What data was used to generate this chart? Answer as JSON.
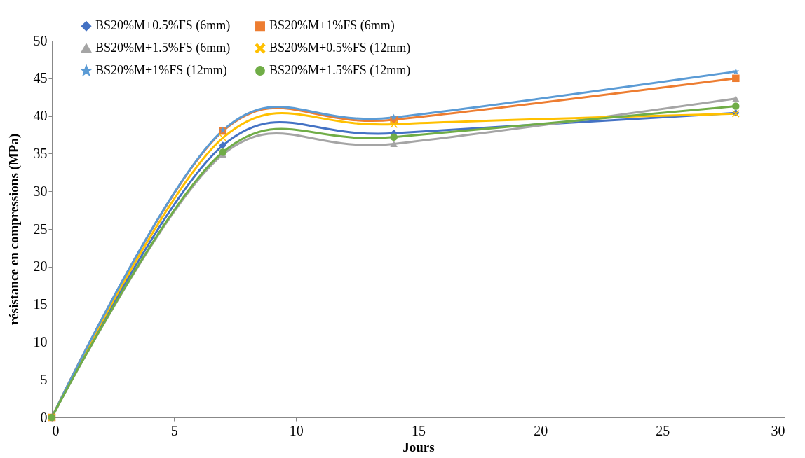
{
  "chart_data": {
    "type": "line",
    "xlabel": "Jours",
    "ylabel": "résistance en compressions (MPa)",
    "x": [
      0,
      7,
      14,
      28
    ],
    "series": [
      {
        "name": "BS20%M+0.5%FS (6mm)",
        "color": "#4472c4",
        "marker": "diamond",
        "values": [
          0,
          36.1,
          37.7,
          40.4
        ]
      },
      {
        "name": "BS20%M+1%FS (6mm)",
        "color": "#ed7d31",
        "marker": "square",
        "values": [
          0,
          38.0,
          39.5,
          45.0
        ]
      },
      {
        "name": "BS20%M+1.5%FS (6mm)",
        "color": "#a5a5a5",
        "marker": "triangle",
        "values": [
          0,
          34.9,
          36.3,
          42.3
        ]
      },
      {
        "name": "BS20%M+0.5%FS (12mm)",
        "color": "#ffc000",
        "marker": "cross",
        "values": [
          0,
          37.1,
          38.9,
          40.3
        ]
      },
      {
        "name": "BS20%M+1%FS (12mm)",
        "color": "#5b9bd5",
        "marker": "star",
        "values": [
          0,
          38.1,
          39.8,
          45.9
        ]
      },
      {
        "name": "BS20%M+1.5%FS (12mm)",
        "color": "#70ad47",
        "marker": "circle",
        "values": [
          0,
          35.2,
          37.2,
          41.3
        ]
      }
    ],
    "xlim": [
      0,
      30
    ],
    "xticks": [
      0,
      5,
      10,
      15,
      20,
      25,
      30
    ],
    "ylim": [
      0,
      50
    ],
    "yticks": [
      0,
      5,
      10,
      15,
      20,
      25,
      30,
      35,
      40,
      45,
      50
    ],
    "grid": false,
    "legend": "top left",
    "line_style": "solid"
  }
}
